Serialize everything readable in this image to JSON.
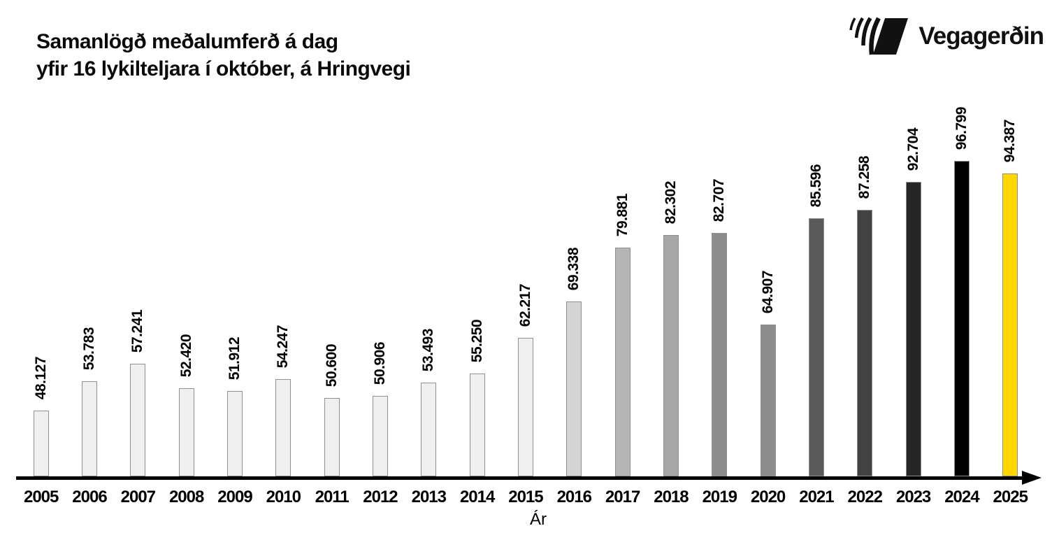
{
  "header": {
    "title_line1": "Samanlögð meðalumferð á dag",
    "title_line2": "yfir 16 lykilteljara í október, á Hringvegi",
    "logo_text": "Vegagerðin",
    "logo_icon": "striped-parallelogram-road-mark-icon"
  },
  "chart_data": {
    "type": "bar",
    "title": "Samanlögð meðalumferð á dag yfir 16 lykilteljara í október, á Hringvegi",
    "xlabel": "Ár",
    "ylabel": "",
    "categories": [
      "2005",
      "2006",
      "2007",
      "2008",
      "2009",
      "2010",
      "2011",
      "2012",
      "2013",
      "2014",
      "2015",
      "2016",
      "2017",
      "2018",
      "2019",
      "2020",
      "2021",
      "2022",
      "2023",
      "2024",
      "2025"
    ],
    "values": [
      48127,
      53783,
      57241,
      52420,
      51912,
      54247,
      50600,
      50906,
      53493,
      55250,
      62217,
      69338,
      79881,
      82302,
      82707,
      64907,
      85596,
      87258,
      92704,
      96799,
      94387
    ],
    "value_labels": [
      "48.127",
      "53.783",
      "57.241",
      "52.420",
      "51.912",
      "54.247",
      "50.600",
      "50.906",
      "53.493",
      "55.250",
      "62.217",
      "69.338",
      "79.881",
      "82.302",
      "82.707",
      "64.907",
      "85.596",
      "87.258",
      "92.704",
      "96.799",
      "94.387"
    ],
    "bar_colors": [
      "#efefef",
      "#efefef",
      "#efefef",
      "#efefef",
      "#efefef",
      "#efefef",
      "#efefef",
      "#efefef",
      "#efefef",
      "#efefef",
      "#efefef",
      "#d4d4d4",
      "#b5b5b5",
      "#a6a6a6",
      "#8c8c8c",
      "#8c8c8c",
      "#595959",
      "#424242",
      "#262626",
      "#000000",
      "#ffd600"
    ],
    "bar_border_color": "#8f8f8f",
    "highlight_color": "#ffd600",
    "axis_color": "#000000",
    "value_label_rotation": -90,
    "axis_baseline_value": 35260,
    "ylim": [
      35260,
      97000
    ],
    "grid": false,
    "legend": "none"
  }
}
